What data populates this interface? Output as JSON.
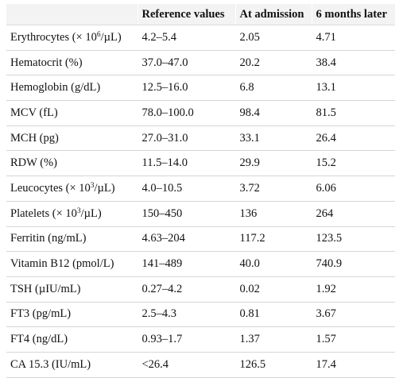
{
  "table": {
    "headers": [
      "",
      "Reference values",
      "At admission",
      "6 months later"
    ],
    "rows": [
      {
        "label_pre": "Erythrocytes (× 10",
        "label_sup": "6",
        "label_post": "/µL)",
        "ref": "4.2–5.4",
        "admission": "2.05",
        "later": "4.71"
      },
      {
        "label_pre": "Hematocrit (%)",
        "label_sup": "",
        "label_post": "",
        "ref": "37.0–47.0",
        "admission": "20.2",
        "later": "38.4"
      },
      {
        "label_pre": "Hemoglobin (g/dL)",
        "label_sup": "",
        "label_post": "",
        "ref": "12.5–16.0",
        "admission": "6.8",
        "later": "13.1"
      },
      {
        "label_pre": "MCV (fL)",
        "label_sup": "",
        "label_post": "",
        "ref": "78.0–100.0",
        "admission": "98.4",
        "later": "81.5"
      },
      {
        "label_pre": "MCH (pg)",
        "label_sup": "",
        "label_post": "",
        "ref": "27.0–31.0",
        "admission": "33.1",
        "later": "26.4"
      },
      {
        "label_pre": "RDW (%)",
        "label_sup": "",
        "label_post": "",
        "ref": "11.5–14.0",
        "admission": "29.9",
        "later": "15.2"
      },
      {
        "label_pre": "Leucocytes (× 10",
        "label_sup": "3",
        "label_post": "/µL)",
        "ref": "4.0–10.5",
        "admission": "3.72",
        "later": "6.06"
      },
      {
        "label_pre": "Platelets (× 10",
        "label_sup": "3",
        "label_post": "/µL)",
        "ref": "150–450",
        "admission": "136",
        "later": "264"
      },
      {
        "label_pre": "Ferritin (ng/mL)",
        "label_sup": "",
        "label_post": "",
        "ref": "4.63–204",
        "admission": "117.2",
        "later": "123.5"
      },
      {
        "label_pre": "Vitamin B12 (pmol/L)",
        "label_sup": "",
        "label_post": "",
        "ref": "141–489",
        "admission": "40.0",
        "later": "740.9"
      },
      {
        "label_pre": "TSH (µIU/mL)",
        "label_sup": "",
        "label_post": "",
        "ref": "0.27–4.2",
        "admission": "0.02",
        "later": "1.92"
      },
      {
        "label_pre": "FT3 (pg/mL)",
        "label_sup": "",
        "label_post": "",
        "ref": "2.5–4.3",
        "admission": "0.81",
        "later": "3.67"
      },
      {
        "label_pre": "FT4 (ng/dL)",
        "label_sup": "",
        "label_post": "",
        "ref": "0.93–1.7",
        "admission": "1.37",
        "later": "1.57"
      },
      {
        "label_pre": "CA 15.3 (IU/mL)",
        "label_sup": "",
        "label_post": "",
        "ref": "<26.4",
        "admission": "126.5",
        "later": "17.4"
      }
    ]
  }
}
